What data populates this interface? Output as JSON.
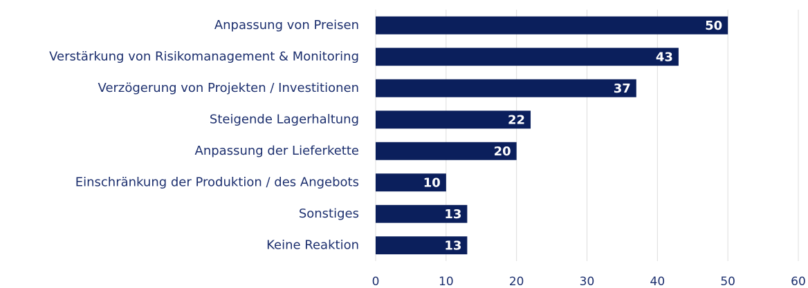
{
  "chart_data": {
    "type": "barh",
    "categories": [
      "Anpassung von Preisen",
      "Verstärkung von Risikomanagement & Monitoring",
      "Verzögerung von Projekten / Investitionen",
      "Steigende Lagerhaltung",
      "Anpassung der Lieferkette",
      "Einschränkung der Produktion / des Angebots",
      "Sonstiges",
      "Keine Reaktion"
    ],
    "values": [
      50,
      43,
      37,
      22,
      20,
      10,
      13,
      13
    ],
    "color": "#0b1f5c",
    "xlim": [
      0,
      60
    ],
    "xticks": [
      0,
      10,
      20,
      30,
      40,
      50,
      60
    ],
    "grid": true,
    "data_labels": true
  }
}
